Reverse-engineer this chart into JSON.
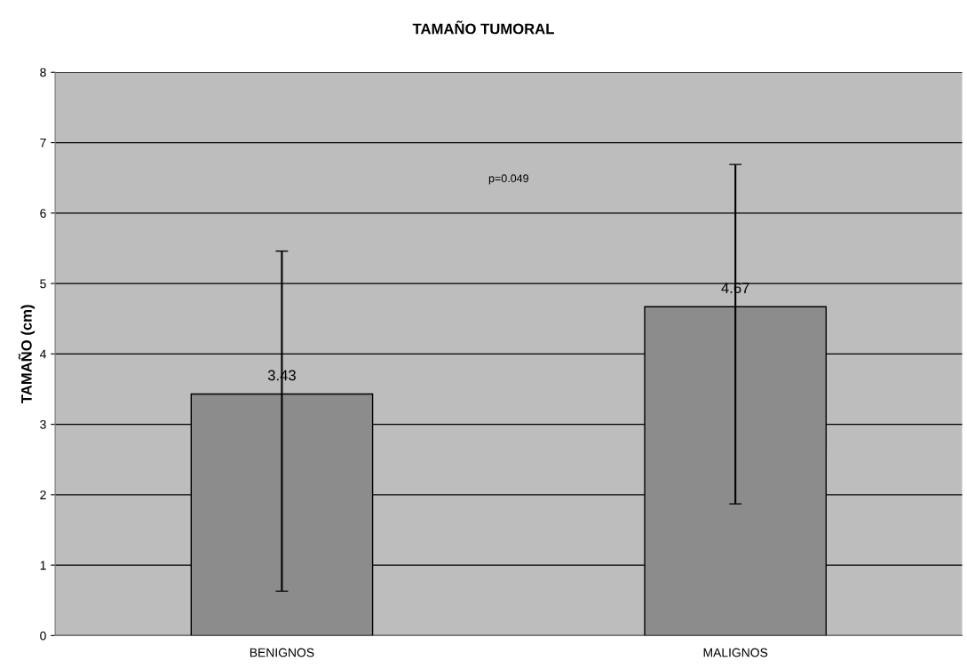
{
  "chart_data": {
    "type": "bar",
    "title": "TAMAÑO TUMORAL",
    "ylabel": "TAMAÑO (cm)",
    "categories": [
      "BENIGNOS",
      "MALIGNOS"
    ],
    "values": [
      3.43,
      4.67
    ],
    "errors": [
      [
        0.63,
        5.46
      ],
      [
        1.87,
        6.69
      ]
    ],
    "color": "#8c8c8c",
    "ylim": [
      0,
      8
    ],
    "yticks": [
      0,
      1,
      2,
      3,
      4,
      5,
      6,
      7,
      8
    ],
    "grid": "y",
    "data_labels": true,
    "annotations": [
      "p=0.049"
    ]
  }
}
